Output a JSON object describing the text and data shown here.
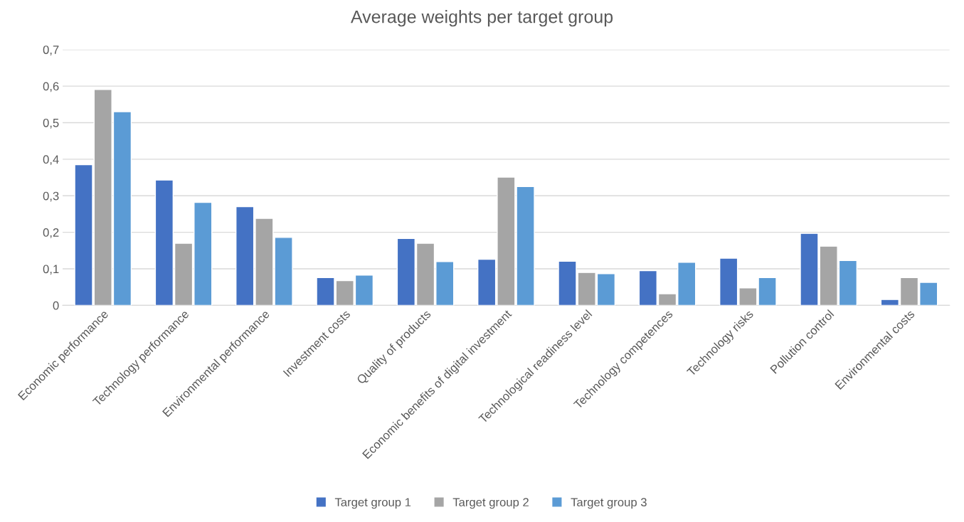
{
  "chart_data": {
    "type": "bar",
    "title": "Average weights per target group",
    "categories": [
      "Economic performance",
      "Technology performance",
      "Environmental performance",
      "Investment costs",
      "Quality of products",
      "Economic benefits of digital investment",
      "Technological readiness level",
      "Technology competences",
      "Technology risks",
      "Pollution control",
      "Environmental costs"
    ],
    "series": [
      {
        "name": "Target group 1",
        "color": "#4472c4",
        "values": [
          0.385,
          0.343,
          0.27,
          0.076,
          0.183,
          0.126,
          0.121,
          0.095,
          0.129,
          0.197,
          0.016
        ]
      },
      {
        "name": "Target group 2",
        "color": "#a5a5a5",
        "values": [
          0.591,
          0.17,
          0.238,
          0.068,
          0.17,
          0.351,
          0.09,
          0.032,
          0.048,
          0.162,
          0.076
        ]
      },
      {
        "name": "Target group 3",
        "color": "#5b9bd5",
        "values": [
          0.53,
          0.282,
          0.186,
          0.083,
          0.12,
          0.325,
          0.087,
          0.118,
          0.076,
          0.123,
          0.063
        ]
      }
    ],
    "ylim": [
      0,
      0.7
    ],
    "yticks": [
      0,
      {
        "value": 0.1,
        "label": "0,1"
      },
      {
        "value": 0.2,
        "label": "0,2"
      },
      {
        "value": 0.3,
        "label": "0,3"
      },
      {
        "value": 0.4,
        "label": "0,4"
      },
      {
        "value": 0.5,
        "label": "0,5"
      },
      {
        "value": 0.6,
        "label": "0,6"
      },
      {
        "value": 0.7,
        "label": "0,7"
      }
    ],
    "grid": "y",
    "legend": "bottom"
  }
}
